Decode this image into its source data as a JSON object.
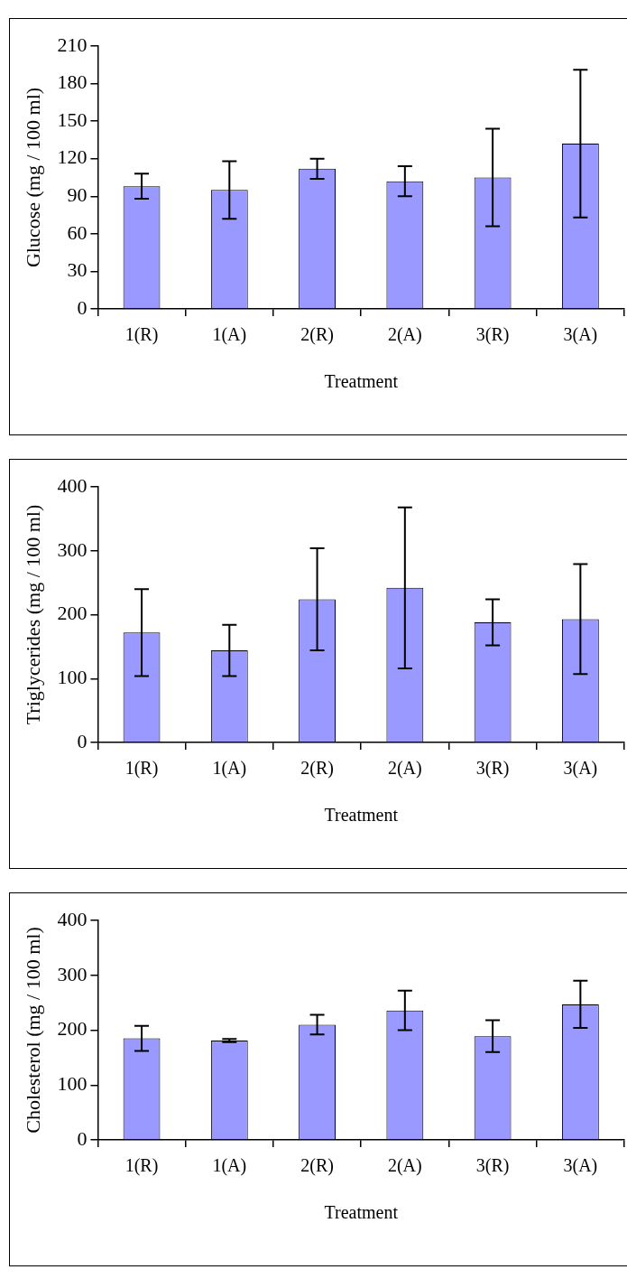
{
  "chart_data": [
    {
      "type": "bar",
      "xlabel": "Treatment",
      "ylabel": "Glucose (mg / 100 ml)",
      "categories": [
        "1(R)",
        "1(A)",
        "2(R)",
        "2(A)",
        "3(R)",
        "3(A)"
      ],
      "values": [
        98,
        95,
        112,
        102,
        105,
        132
      ],
      "errors": [
        10,
        23,
        8,
        12,
        39,
        59
      ],
      "color": "#9999ff",
      "ylim": [
        0,
        210
      ],
      "yticks": [
        0,
        30,
        60,
        90,
        120,
        150,
        180,
        210
      ],
      "grid": false
    },
    {
      "type": "bar",
      "xlabel": "Treatment",
      "ylabel": "Triglycerides (mg / 100 ml)",
      "categories": [
        "1(R)",
        "1(A)",
        "2(R)",
        "2(A)",
        "3(R)",
        "3(A)"
      ],
      "values": [
        172,
        144,
        224,
        242,
        188,
        193
      ],
      "errors": [
        68,
        40,
        80,
        126,
        36,
        86
      ],
      "color": "#9999ff",
      "ylim": [
        0,
        400
      ],
      "yticks": [
        0,
        100,
        200,
        300,
        400
      ],
      "grid": false
    },
    {
      "type": "bar",
      "xlabel": "Treatment",
      "ylabel": "Cholesterol (mg / 100 ml)",
      "categories": [
        "1(R)",
        "1(A)",
        "2(R)",
        "2(A)",
        "3(R)",
        "3(A)"
      ],
      "values": [
        185,
        181,
        210,
        236,
        189,
        247
      ],
      "errors": [
        23,
        3,
        18,
        36,
        29,
        43
      ],
      "color": "#9999ff",
      "ylim": [
        0,
        400
      ],
      "yticks": [
        0,
        100,
        200,
        300,
        400
      ],
      "grid": false
    }
  ]
}
